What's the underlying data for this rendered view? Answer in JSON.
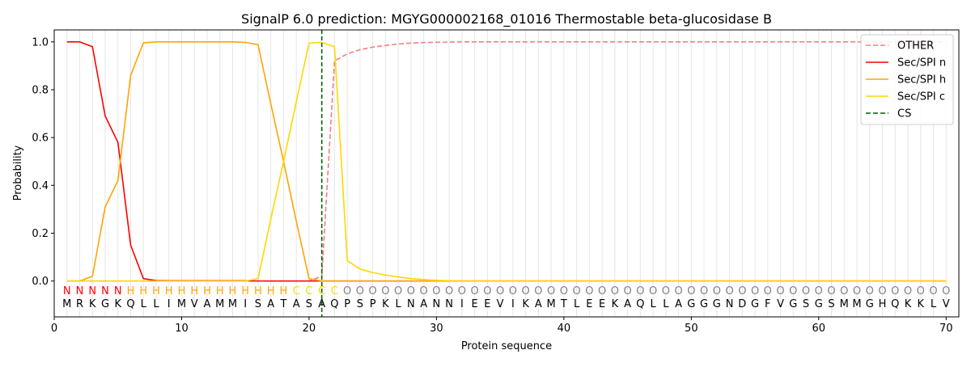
{
  "chart_data": {
    "type": "line",
    "title": "SignalP 6.0 prediction: MGYG000002168_01016 Thermostable beta-glucosidase B",
    "xlabel": "Protein sequence",
    "ylabel": "Probability",
    "xlim": [
      0,
      71
    ],
    "ylim": [
      -0.15,
      1.05
    ],
    "xticks": [
      0,
      10,
      20,
      30,
      40,
      50,
      60,
      70
    ],
    "yticks": [
      0.0,
      0.2,
      0.4,
      0.6,
      0.8,
      1.0
    ],
    "legend_position": "top-right",
    "sequence": "MRKGKQLLIMVAMMISATASAQPSPKLNANNIEEVIKAMTLEEKAQLLAGGGNDGFVGSGSMMGHQKKLV",
    "region_labels": "NNNNNHHHHHHHHHHHHHCCCCOOOOOOOOOOOOOOOOOOOOOOOOOOOOOOOOOOOOOOOOOOOOOOOOO",
    "label_colors": {
      "N": "#ff0000",
      "H": "#ffa500",
      "C": "#ffd700",
      "O": "#808080"
    },
    "cleavage_site": 21,
    "series": [
      {
        "name": "OTHER",
        "color": "#f08080",
        "dash": "dashed",
        "values": [
          0,
          0,
          0,
          0,
          0,
          0,
          0,
          0,
          0,
          0,
          0,
          0,
          0,
          0,
          0,
          0,
          0,
          0,
          0,
          0,
          0.02,
          0.92,
          0.95,
          0.967,
          0.978,
          0.985,
          0.991,
          0.995,
          0.997,
          0.998,
          0.999,
          1,
          1,
          1,
          1,
          1,
          1,
          1,
          1,
          1,
          1,
          1,
          1,
          1,
          1,
          1,
          1,
          1,
          1,
          1,
          1,
          1,
          1,
          1,
          1,
          1,
          1,
          1,
          1,
          1,
          1,
          1,
          1,
          1,
          1,
          1,
          1,
          1,
          1,
          1
        ]
      },
      {
        "name": "Sec/SPI n",
        "color": "#ff0000",
        "dash": "solid",
        "values": [
          1.0,
          1.0,
          0.98,
          0.69,
          0.58,
          0.15,
          0.01,
          0.002,
          0.001,
          0.001,
          0.001,
          0.001,
          0.001,
          0.001,
          0.001,
          0,
          0,
          0,
          0,
          0,
          0,
          0,
          0,
          0,
          0,
          0,
          0,
          0,
          0,
          0,
          0,
          0,
          0,
          0,
          0,
          0,
          0,
          0,
          0,
          0,
          0,
          0,
          0,
          0,
          0,
          0,
          0,
          0,
          0,
          0,
          0,
          0,
          0,
          0,
          0,
          0,
          0,
          0,
          0,
          0,
          0,
          0,
          0,
          0,
          0,
          0,
          0,
          0,
          0,
          0
        ]
      },
      {
        "name": "Sec/SPI h",
        "color": "#ffa500",
        "dash": "solid",
        "values": [
          0,
          0,
          0.02,
          0.31,
          0.42,
          0.86,
          0.996,
          1.0,
          1.0,
          1.0,
          1.0,
          1.0,
          1.0,
          1.0,
          0.998,
          0.988,
          0.74,
          0.5,
          0.25,
          0.01,
          0,
          0,
          0,
          0,
          0,
          0,
          0,
          0,
          0,
          0,
          0,
          0,
          0,
          0,
          0,
          0,
          0,
          0,
          0,
          0,
          0,
          0,
          0,
          0,
          0,
          0,
          0,
          0,
          0,
          0,
          0,
          0,
          0,
          0,
          0,
          0,
          0,
          0,
          0,
          0,
          0,
          0,
          0,
          0,
          0,
          0,
          0,
          0,
          0,
          0
        ]
      },
      {
        "name": "Sec/SPI c",
        "color": "#ffd700",
        "dash": "solid",
        "values": [
          0,
          0,
          0,
          0,
          0,
          0,
          0,
          0,
          0,
          0,
          0,
          0,
          0,
          0,
          0,
          0.01,
          0.26,
          0.5,
          0.75,
          0.995,
          0.998,
          0.98,
          0.085,
          0.05,
          0.035,
          0.025,
          0.017,
          0.01,
          0.006,
          0.003,
          0.001,
          0,
          0,
          0,
          0,
          0,
          0,
          0,
          0,
          0,
          0,
          0,
          0,
          0,
          0,
          0,
          0,
          0,
          0,
          0,
          0,
          0,
          0,
          0,
          0,
          0,
          0,
          0,
          0,
          0,
          0,
          0,
          0,
          0,
          0,
          0,
          0,
          0,
          0,
          0
        ]
      },
      {
        "name": "CS",
        "color": "#006400",
        "dash": "dashed",
        "vertical_at": 21
      }
    ]
  }
}
